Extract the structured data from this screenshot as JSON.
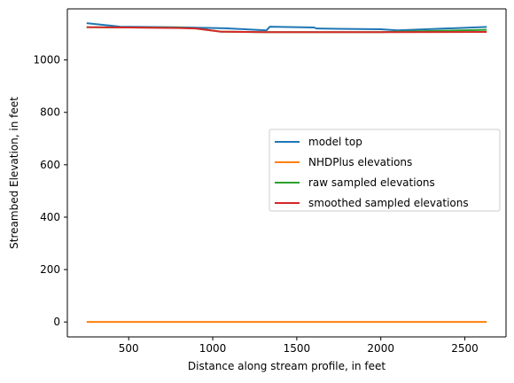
{
  "chart_data": {
    "type": "line",
    "title": "",
    "xlabel": "Distance along stream profile, in feet",
    "ylabel": "Streambed Elevation, in feet",
    "xlim": [
      135,
      2745
    ],
    "ylim": [
      -57,
      1195
    ],
    "xticks": [
      500,
      1000,
      1500,
      2000,
      2500
    ],
    "yticks": [
      0,
      200,
      400,
      600,
      800,
      1000
    ],
    "grid": false,
    "legend_position": "center-right",
    "series": [
      {
        "name": "model top",
        "color": "#1f77b4",
        "x": [
          255,
          450,
          780,
          1070,
          1320,
          1340,
          1600,
          1620,
          2000,
          2100,
          2625
        ],
        "y": [
          1140,
          1127,
          1125,
          1121,
          1113,
          1127,
          1124,
          1120,
          1117,
          1113,
          1126
        ]
      },
      {
        "name": "NHDPlus elevations",
        "color": "#ff7f0e",
        "x": [
          255,
          2625
        ],
        "y": [
          0,
          0
        ]
      },
      {
        "name": "raw sampled elevations",
        "color": "#2ca02c",
        "x": [
          255,
          500,
          800,
          900,
          1050,
          1300,
          1600,
          2000,
          2100,
          2625
        ],
        "y": [
          1125,
          1124,
          1123,
          1120,
          1108,
          1106,
          1106,
          1106,
          1108,
          1115
        ]
      },
      {
        "name": "smoothed sampled elevations",
        "color": "#d62728",
        "x": [
          255,
          500,
          800,
          900,
          1050,
          1300,
          1600,
          2000,
          2100,
          2625
        ],
        "y": [
          1125,
          1124,
          1122,
          1120,
          1108,
          1106,
          1106,
          1106,
          1106,
          1107
        ]
      }
    ]
  }
}
